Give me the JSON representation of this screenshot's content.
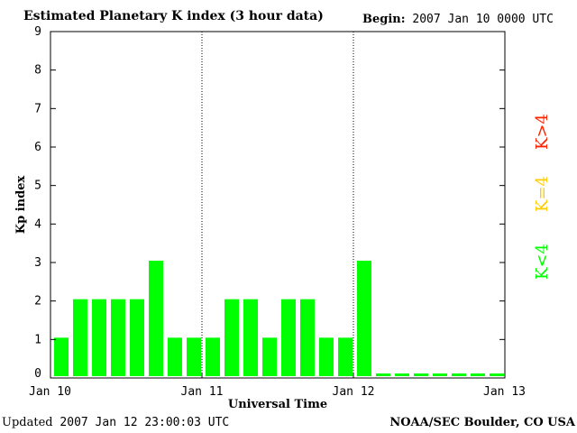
{
  "header": {
    "title": "Estimated Planetary K index (3 hour data)",
    "begin_label": "Begin:",
    "begin_value": "2007 Jan 10 0000 UTC"
  },
  "footer": {
    "updated_label": "Updated",
    "updated_value": "2007 Jan 12 23:00:03 UTC",
    "source": "NOAA/SEC Boulder, CO USA"
  },
  "colors": {
    "low": "#00ff00",
    "moderate": "#ffcc00",
    "high": "#ff2200"
  },
  "chart_data": {
    "type": "bar",
    "title": "Estimated Planetary K index (3 hour data)",
    "xlabel": "Universal Time",
    "ylabel": "Kp index",
    "ylim": [
      0,
      9
    ],
    "yticks": [
      "0",
      "1",
      "2",
      "3",
      "4",
      "5",
      "6",
      "7",
      "8",
      "9"
    ],
    "xticks": [
      "Jan 10",
      "Jan 11",
      "Jan 12",
      "Jan 13"
    ],
    "day_separators": [
      "Jan 11",
      "Jan 12"
    ],
    "grid": false,
    "slot_hours": 3,
    "values": [
      1,
      2,
      2,
      2,
      2,
      3,
      1,
      1,
      1,
      2,
      2,
      1,
      2,
      2,
      1,
      1,
      3,
      0,
      0,
      0,
      0,
      0,
      0,
      0
    ],
    "legend": [
      {
        "label": "K<4",
        "color": "#00ff00"
      },
      {
        "label": "K=4",
        "color": "#ffcc00"
      },
      {
        "label": "K>4",
        "color": "#ff2200"
      }
    ]
  }
}
